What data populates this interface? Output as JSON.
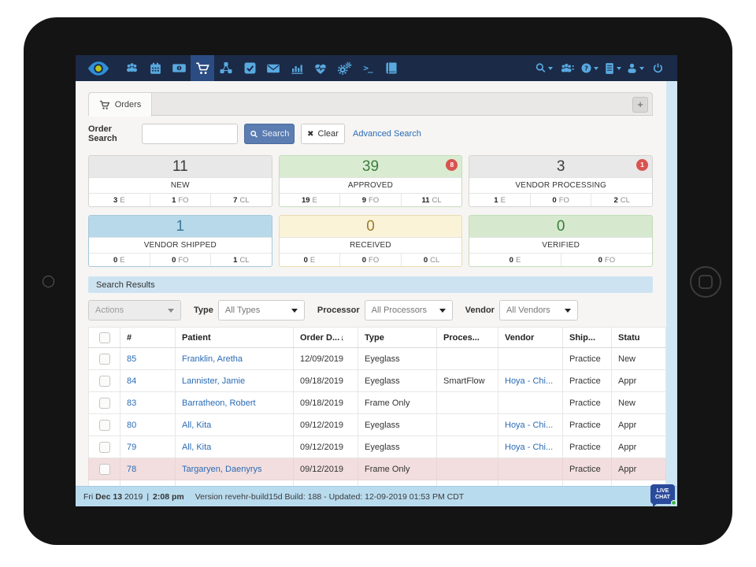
{
  "colors": {
    "navbar_bg": "#1b2a47",
    "navbar_active_bg": "#2b4c82",
    "icon_blue": "#58a9e0",
    "link_blue": "#2a6bb5",
    "search_button_bg": "#5b7db1",
    "results_bar_bg": "#cde3f1",
    "footer_bg": "#b9dbee",
    "highlight_row_bg": "#f2dede",
    "badge_red": "#d9534f",
    "live_chat_bg": "#2a4a9b",
    "live_chat_dot": "#3cb54a"
  },
  "navbar": {
    "left_icons": [
      "eye-logo-icon",
      "patients-icon",
      "calendar-icon",
      "billing-icon",
      "orders-cart-icon",
      "integrations-icon",
      "tasks-icon",
      "messages-icon",
      "reports-icon",
      "health-icon",
      "settings-gears-icon",
      "terminal-icon",
      "book-icon"
    ],
    "active_icon": "orders-cart-icon",
    "terminal_glyph": ">_",
    "right_icons": [
      "global-search-icon",
      "patient-alert-icon",
      "help-icon",
      "resources-icon",
      "account-icon",
      "power-icon"
    ]
  },
  "tabs": {
    "orders_label": "Orders",
    "add_label": "+"
  },
  "search": {
    "label": "Order Search",
    "value": "",
    "placeholder": "",
    "search_button": "Search",
    "clear_button": "Clear",
    "advanced_link": "Advanced Search"
  },
  "status_cards": [
    {
      "count": "11",
      "label": "NEW",
      "badge": "",
      "header_bg": "#e8e8e8",
      "count_color": "#3b3b3b",
      "border": "#d4d4d4",
      "cells": [
        {
          "v": "3",
          "u": "E"
        },
        {
          "v": "1",
          "u": "FO"
        },
        {
          "v": "7",
          "u": "CL"
        }
      ]
    },
    {
      "count": "39",
      "label": "APPROVED",
      "badge": "8",
      "header_bg": "#d9ecd2",
      "count_color": "#3a7d3a",
      "border": "#c6ddbf",
      "cells": [
        {
          "v": "19",
          "u": "E"
        },
        {
          "v": "9",
          "u": "FO"
        },
        {
          "v": "11",
          "u": "CL"
        }
      ]
    },
    {
      "count": "3",
      "label": "VENDOR PROCESSING",
      "badge": "1",
      "header_bg": "#e8e8e8",
      "count_color": "#3b3b3b",
      "border": "#d4d4d4",
      "cells": [
        {
          "v": "1",
          "u": "E"
        },
        {
          "v": "0",
          "u": "FO"
        },
        {
          "v": "2",
          "u": "CL"
        }
      ]
    },
    {
      "count": "1",
      "label": "VENDOR SHIPPED",
      "badge": "",
      "header_bg": "#b8d9e9",
      "count_color": "#3c7b9e",
      "border": "#a6c8da",
      "cells": [
        {
          "v": "0",
          "u": "E"
        },
        {
          "v": "0",
          "u": "FO"
        },
        {
          "v": "1",
          "u": "CL"
        }
      ]
    },
    {
      "count": "0",
      "label": "RECEIVED",
      "badge": "",
      "header_bg": "#faf3d8",
      "count_color": "#9a7d2e",
      "border": "#e8dcb0",
      "cells": [
        {
          "v": "0",
          "u": "E"
        },
        {
          "v": "0",
          "u": "FO"
        },
        {
          "v": "0",
          "u": "CL"
        }
      ]
    },
    {
      "count": "0",
      "label": "VERIFIED",
      "badge": "",
      "header_bg": "#d6e9cf",
      "count_color": "#3a7d3a",
      "border": "#c3dcba",
      "cells": [
        {
          "v": "0",
          "u": "E"
        },
        {
          "v": "0",
          "u": "FO"
        }
      ]
    }
  ],
  "results": {
    "title": "Search Results"
  },
  "filters": {
    "actions_value": "Actions",
    "type_label": "Type",
    "type_value": "All Types",
    "processor_label": "Processor",
    "processor_value": "All Processors",
    "vendor_label": "Vendor",
    "vendor_value": "All Vendors"
  },
  "table": {
    "columns": [
      {
        "label": "#",
        "sort": ""
      },
      {
        "label": "Patient",
        "sort": ""
      },
      {
        "label": "Order D...",
        "sort": "desc"
      },
      {
        "label": "Type",
        "sort": ""
      },
      {
        "label": "Proces...",
        "sort": ""
      },
      {
        "label": "Vendor",
        "sort": ""
      },
      {
        "label": "Ship...",
        "sort": ""
      },
      {
        "label": "Statu",
        "sort": ""
      }
    ],
    "rows": [
      {
        "num": "85",
        "patient": "Franklin, Aretha",
        "date": "12/09/2019",
        "type": "Eyeglass",
        "processor": "",
        "vendor": "",
        "ship": "Practice",
        "status": "New",
        "highlight": false
      },
      {
        "num": "84",
        "patient": "Lannister, Jamie",
        "date": "09/18/2019",
        "type": "Eyeglass",
        "processor": "SmartFlow",
        "vendor": "Hoya - Chi...",
        "ship": "Practice",
        "status": "Appr",
        "highlight": false
      },
      {
        "num": "83",
        "patient": "Barratheon, Robert",
        "date": "09/18/2019",
        "type": "Frame Only",
        "processor": "",
        "vendor": "",
        "ship": "Practice",
        "status": "New",
        "highlight": false
      },
      {
        "num": "80",
        "patient": "All, Kita",
        "date": "09/12/2019",
        "type": "Eyeglass",
        "processor": "",
        "vendor": "Hoya - Chi...",
        "ship": "Practice",
        "status": "Appr",
        "highlight": false
      },
      {
        "num": "79",
        "patient": "All, Kita",
        "date": "09/12/2019",
        "type": "Eyeglass",
        "processor": "",
        "vendor": "Hoya - Chi...",
        "ship": "Practice",
        "status": "Appr",
        "highlight": false
      },
      {
        "num": "78",
        "patient": "Targaryen, Daenyrys",
        "date": "09/12/2019",
        "type": "Frame Only",
        "processor": "",
        "vendor": "",
        "ship": "Practice",
        "status": "Appr",
        "highlight": true
      }
    ]
  },
  "footer": {
    "day": "Fri",
    "date_bold": "Dec 13",
    "year": "2019",
    "separator": "|",
    "time_bold": "2:08 pm",
    "version": "Version revehr-build15d Build: 188 - Updated: 12-09-2019 01:53 PM CDT",
    "live_chat_line1": "LIVE",
    "live_chat_line2": "CHAT"
  }
}
